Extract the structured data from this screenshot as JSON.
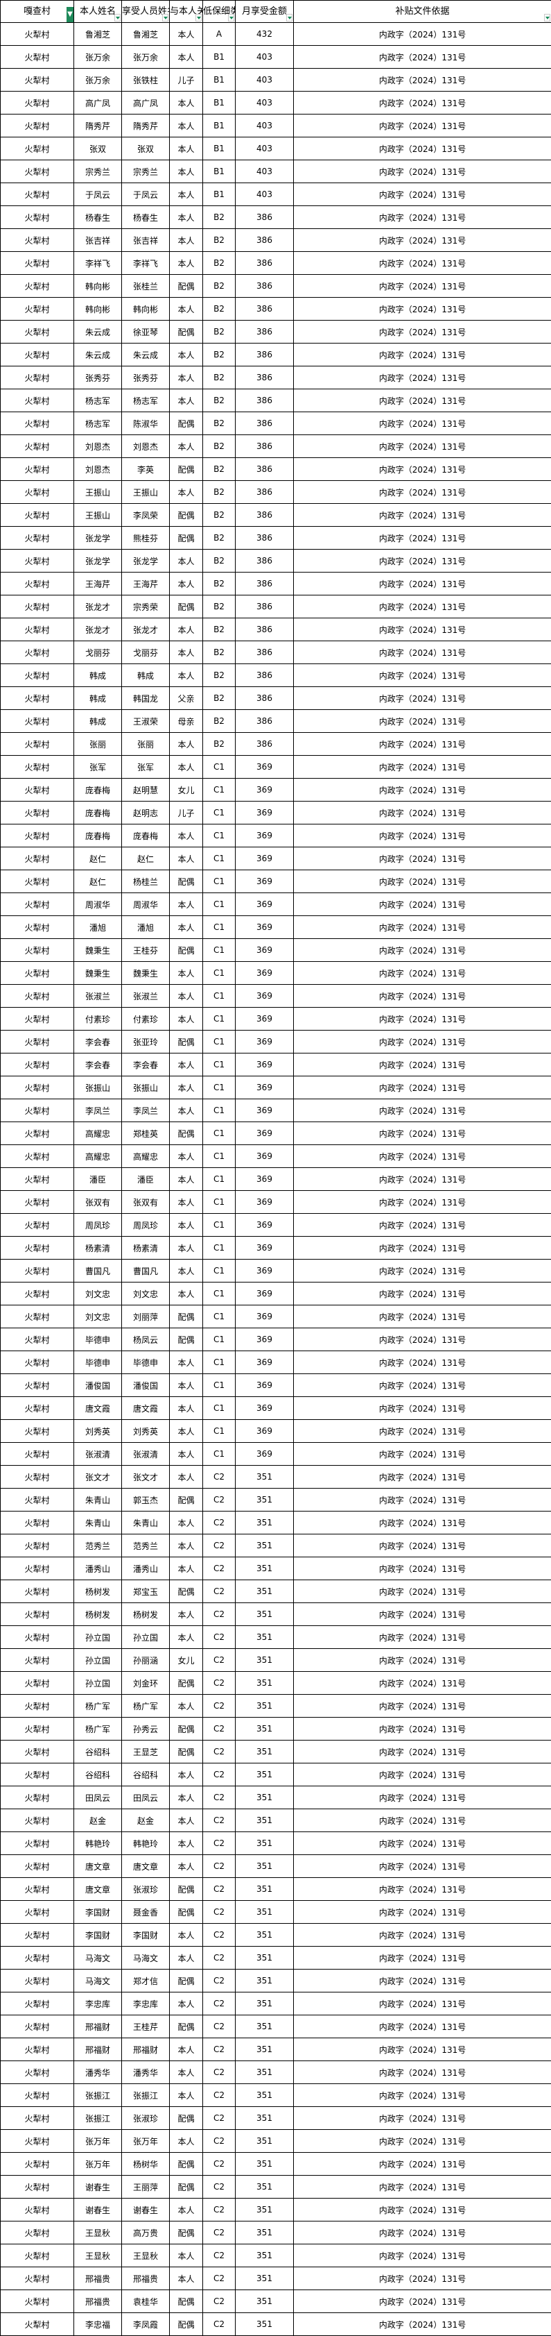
{
  "headers": [
    "嘎查村",
    "本人姓名",
    "享受人员姓名",
    "与本人关系",
    "低保细类",
    "月享受金额",
    "补贴文件依据"
  ],
  "filter_icons": {
    "active": "filter-active-icon",
    "dropdown": "filter-dropdown-icon"
  },
  "accent_color": "#1e8a5a",
  "rows": [
    [
      "火犁村",
      "鲁湘芝",
      "鲁湘芝",
      "本人",
      "A",
      "432",
      "内政字（2024）131号"
    ],
    [
      "火犁村",
      "张万余",
      "张万余",
      "本人",
      "B1",
      "403",
      "内政字（2024）131号"
    ],
    [
      "火犁村",
      "张万余",
      "张铁柱",
      "儿子",
      "B1",
      "403",
      "内政字（2024）131号"
    ],
    [
      "火犁村",
      "高广凤",
      "高广凤",
      "本人",
      "B1",
      "403",
      "内政字（2024）131号"
    ],
    [
      "火犁村",
      "隋秀芹",
      "隋秀芹",
      "本人",
      "B1",
      "403",
      "内政字（2024）131号"
    ],
    [
      "火犁村",
      "张双",
      "张双",
      "本人",
      "B1",
      "403",
      "内政字（2024）131号"
    ],
    [
      "火犁村",
      "宗秀兰",
      "宗秀兰",
      "本人",
      "B1",
      "403",
      "内政字（2024）131号"
    ],
    [
      "火犁村",
      "于凤云",
      "于凤云",
      "本人",
      "B1",
      "403",
      "内政字（2024）131号"
    ],
    [
      "火犁村",
      "杨春生",
      "杨春生",
      "本人",
      "B2",
      "386",
      "内政字（2024）131号"
    ],
    [
      "火犁村",
      "张吉祥",
      "张吉祥",
      "本人",
      "B2",
      "386",
      "内政字（2024）131号"
    ],
    [
      "火犁村",
      "李祥飞",
      "李祥飞",
      "本人",
      "B2",
      "386",
      "内政字（2024）131号"
    ],
    [
      "火犁村",
      "韩向彬",
      "张桂兰",
      "配偶",
      "B2",
      "386",
      "内政字（2024）131号"
    ],
    [
      "火犁村",
      "韩向彬",
      "韩向彬",
      "本人",
      "B2",
      "386",
      "内政字（2024）131号"
    ],
    [
      "火犁村",
      "朱云成",
      "徐亚琴",
      "配偶",
      "B2",
      "386",
      "内政字（2024）131号"
    ],
    [
      "火犁村",
      "朱云成",
      "朱云成",
      "本人",
      "B2",
      "386",
      "内政字（2024）131号"
    ],
    [
      "火犁村",
      "张秀芬",
      "张秀芬",
      "本人",
      "B2",
      "386",
      "内政字（2024）131号"
    ],
    [
      "火犁村",
      "杨志军",
      "杨志军",
      "本人",
      "B2",
      "386",
      "内政字（2024）131号"
    ],
    [
      "火犁村",
      "杨志军",
      "陈淑华",
      "配偶",
      "B2",
      "386",
      "内政字（2024）131号"
    ],
    [
      "火犁村",
      "刘恩杰",
      "刘恩杰",
      "本人",
      "B2",
      "386",
      "内政字（2024）131号"
    ],
    [
      "火犁村",
      "刘恩杰",
      "李英",
      "配偶",
      "B2",
      "386",
      "内政字（2024）131号"
    ],
    [
      "火犁村",
      "王振山",
      "王振山",
      "本人",
      "B2",
      "386",
      "内政字（2024）131号"
    ],
    [
      "火犁村",
      "王振山",
      "李凤荣",
      "配偶",
      "B2",
      "386",
      "内政字（2024）131号"
    ],
    [
      "火犁村",
      "张龙学",
      "熊桂芬",
      "配偶",
      "B2",
      "386",
      "内政字（2024）131号"
    ],
    [
      "火犁村",
      "张龙学",
      "张龙学",
      "本人",
      "B2",
      "386",
      "内政字（2024）131号"
    ],
    [
      "火犁村",
      "王海芹",
      "王海芹",
      "本人",
      "B2",
      "386",
      "内政字（2024）131号"
    ],
    [
      "火犁村",
      "张龙才",
      "宗秀荣",
      "配偶",
      "B2",
      "386",
      "内政字（2024）131号"
    ],
    [
      "火犁村",
      "张龙才",
      "张龙才",
      "本人",
      "B2",
      "386",
      "内政字（2024）131号"
    ],
    [
      "火犁村",
      "戈丽芬",
      "戈丽芬",
      "本人",
      "B2",
      "386",
      "内政字（2024）131号"
    ],
    [
      "火犁村",
      "韩成",
      "韩成",
      "本人",
      "B2",
      "386",
      "内政字（2024）131号"
    ],
    [
      "火犁村",
      "韩成",
      "韩国龙",
      "父亲",
      "B2",
      "386",
      "内政字（2024）131号"
    ],
    [
      "火犁村",
      "韩成",
      "王淑荣",
      "母亲",
      "B2",
      "386",
      "内政字（2024）131号"
    ],
    [
      "火犁村",
      "张丽",
      "张丽",
      "本人",
      "B2",
      "386",
      "内政字（2024）131号"
    ],
    [
      "火犁村",
      "张军",
      "张军",
      "本人",
      "C1",
      "369",
      "内政字（2024）131号"
    ],
    [
      "火犁村",
      "庞春梅",
      "赵明慧",
      "女儿",
      "C1",
      "369",
      "内政字（2024）131号"
    ],
    [
      "火犁村",
      "庞春梅",
      "赵明志",
      "儿子",
      "C1",
      "369",
      "内政字（2024）131号"
    ],
    [
      "火犁村",
      "庞春梅",
      "庞春梅",
      "本人",
      "C1",
      "369",
      "内政字（2024）131号"
    ],
    [
      "火犁村",
      "赵仁",
      "赵仁",
      "本人",
      "C1",
      "369",
      "内政字（2024）131号"
    ],
    [
      "火犁村",
      "赵仁",
      "杨桂兰",
      "配偶",
      "C1",
      "369",
      "内政字（2024）131号"
    ],
    [
      "火犁村",
      "周淑华",
      "周淑华",
      "本人",
      "C1",
      "369",
      "内政字（2024）131号"
    ],
    [
      "火犁村",
      "潘旭",
      "潘旭",
      "本人",
      "C1",
      "369",
      "内政字（2024）131号"
    ],
    [
      "火犁村",
      "魏秉生",
      "王桂芬",
      "配偶",
      "C1",
      "369",
      "内政字（2024）131号"
    ],
    [
      "火犁村",
      "魏秉生",
      "魏秉生",
      "本人",
      "C1",
      "369",
      "内政字（2024）131号"
    ],
    [
      "火犁村",
      "张淑兰",
      "张淑兰",
      "本人",
      "C1",
      "369",
      "内政字（2024）131号"
    ],
    [
      "火犁村",
      "付素珍",
      "付素珍",
      "本人",
      "C1",
      "369",
      "内政字（2024）131号"
    ],
    [
      "火犁村",
      "李会春",
      "张亚玲",
      "配偶",
      "C1",
      "369",
      "内政字（2024）131号"
    ],
    [
      "火犁村",
      "李会春",
      "李会春",
      "本人",
      "C1",
      "369",
      "内政字（2024）131号"
    ],
    [
      "火犁村",
      "张振山",
      "张振山",
      "本人",
      "C1",
      "369",
      "内政字（2024）131号"
    ],
    [
      "火犁村",
      "李凤兰",
      "李凤兰",
      "本人",
      "C1",
      "369",
      "内政字（2024）131号"
    ],
    [
      "火犁村",
      "高耀忠",
      "郑桂英",
      "配偶",
      "C1",
      "369",
      "内政字（2024）131号"
    ],
    [
      "火犁村",
      "高耀忠",
      "高耀忠",
      "本人",
      "C1",
      "369",
      "内政字（2024）131号"
    ],
    [
      "火犁村",
      "潘臣",
      "潘臣",
      "本人",
      "C1",
      "369",
      "内政字（2024）131号"
    ],
    [
      "火犁村",
      "张双有",
      "张双有",
      "本人",
      "C1",
      "369",
      "内政字（2024）131号"
    ],
    [
      "火犁村",
      "周凤珍",
      "周凤珍",
      "本人",
      "C1",
      "369",
      "内政字（2024）131号"
    ],
    [
      "火犁村",
      "杨素清",
      "杨素清",
      "本人",
      "C1",
      "369",
      "内政字（2024）131号"
    ],
    [
      "火犁村",
      "曹国凡",
      "曹国凡",
      "本人",
      "C1",
      "369",
      "内政字（2024）131号"
    ],
    [
      "火犁村",
      "刘文忠",
      "刘文忠",
      "本人",
      "C1",
      "369",
      "内政字（2024）131号"
    ],
    [
      "火犁村",
      "刘文忠",
      "刘丽萍",
      "配偶",
      "C1",
      "369",
      "内政字（2024）131号"
    ],
    [
      "火犁村",
      "毕德申",
      "杨凤云",
      "配偶",
      "C1",
      "369",
      "内政字（2024）131号"
    ],
    [
      "火犁村",
      "毕德申",
      "毕德申",
      "本人",
      "C1",
      "369",
      "内政字（2024）131号"
    ],
    [
      "火犁村",
      "潘俊国",
      "潘俊国",
      "本人",
      "C1",
      "369",
      "内政字（2024）131号"
    ],
    [
      "火犁村",
      "唐文霞",
      "唐文霞",
      "本人",
      "C1",
      "369",
      "内政字（2024）131号"
    ],
    [
      "火犁村",
      "刘秀英",
      "刘秀英",
      "本人",
      "C1",
      "369",
      "内政字（2024）131号"
    ],
    [
      "火犁村",
      "张淑清",
      "张淑清",
      "本人",
      "C1",
      "369",
      "内政字（2024）131号"
    ],
    [
      "火犁村",
      "张文才",
      "张文才",
      "本人",
      "C2",
      "351",
      "内政字（2024）131号"
    ],
    [
      "火犁村",
      "朱青山",
      "郭玉杰",
      "配偶",
      "C2",
      "351",
      "内政字（2024）131号"
    ],
    [
      "火犁村",
      "朱青山",
      "朱青山",
      "本人",
      "C2",
      "351",
      "内政字（2024）131号"
    ],
    [
      "火犁村",
      "范秀兰",
      "范秀兰",
      "本人",
      "C2",
      "351",
      "内政字（2024）131号"
    ],
    [
      "火犁村",
      "潘秀山",
      "潘秀山",
      "本人",
      "C2",
      "351",
      "内政字（2024）131号"
    ],
    [
      "火犁村",
      "杨树发",
      "郑宝玉",
      "配偶",
      "C2",
      "351",
      "内政字（2024）131号"
    ],
    [
      "火犁村",
      "杨树发",
      "杨树发",
      "本人",
      "C2",
      "351",
      "内政字（2024）131号"
    ],
    [
      "火犁村",
      "孙立国",
      "孙立国",
      "本人",
      "C2",
      "351",
      "内政字（2024）131号"
    ],
    [
      "火犁村",
      "孙立国",
      "孙丽涵",
      "女儿",
      "C2",
      "351",
      "内政字（2024）131号"
    ],
    [
      "火犁村",
      "孙立国",
      "刘金环",
      "配偶",
      "C2",
      "351",
      "内政字（2024）131号"
    ],
    [
      "火犁村",
      "杨广军",
      "杨广军",
      "本人",
      "C2",
      "351",
      "内政字（2024）131号"
    ],
    [
      "火犁村",
      "杨广军",
      "孙秀云",
      "配偶",
      "C2",
      "351",
      "内政字（2024）131号"
    ],
    [
      "火犁村",
      "谷绍科",
      "王显芝",
      "配偶",
      "C2",
      "351",
      "内政字（2024）131号"
    ],
    [
      "火犁村",
      "谷绍科",
      "谷绍科",
      "本人",
      "C2",
      "351",
      "内政字（2024）131号"
    ],
    [
      "火犁村",
      "田凤云",
      "田凤云",
      "本人",
      "C2",
      "351",
      "内政字（2024）131号"
    ],
    [
      "火犁村",
      "赵金",
      "赵金",
      "本人",
      "C2",
      "351",
      "内政字（2024）131号"
    ],
    [
      "火犁村",
      "韩艳玲",
      "韩艳玲",
      "本人",
      "C2",
      "351",
      "内政字（2024）131号"
    ],
    [
      "火犁村",
      "唐文章",
      "唐文章",
      "本人",
      "C2",
      "351",
      "内政字（2024）131号"
    ],
    [
      "火犁村",
      "唐文章",
      "张淑珍",
      "配偶",
      "C2",
      "351",
      "内政字（2024）131号"
    ],
    [
      "火犁村",
      "李国财",
      "聂金香",
      "配偶",
      "C2",
      "351",
      "内政字（2024）131号"
    ],
    [
      "火犁村",
      "李国财",
      "李国财",
      "本人",
      "C2",
      "351",
      "内政字（2024）131号"
    ],
    [
      "火犁村",
      "马海文",
      "马海文",
      "本人",
      "C2",
      "351",
      "内政字（2024）131号"
    ],
    [
      "火犁村",
      "马海文",
      "郑才信",
      "配偶",
      "C2",
      "351",
      "内政字（2024）131号"
    ],
    [
      "火犁村",
      "李忠库",
      "李忠库",
      "本人",
      "C2",
      "351",
      "内政字（2024）131号"
    ],
    [
      "火犁村",
      "邢福财",
      "王桂芹",
      "配偶",
      "C2",
      "351",
      "内政字（2024）131号"
    ],
    [
      "火犁村",
      "邢福财",
      "邢福财",
      "本人",
      "C2",
      "351",
      "内政字（2024）131号"
    ],
    [
      "火犁村",
      "潘秀华",
      "潘秀华",
      "本人",
      "C2",
      "351",
      "内政字（2024）131号"
    ],
    [
      "火犁村",
      "张振江",
      "张振江",
      "本人",
      "C2",
      "351",
      "内政字（2024）131号"
    ],
    [
      "火犁村",
      "张振江",
      "张淑珍",
      "配偶",
      "C2",
      "351",
      "内政字（2024）131号"
    ],
    [
      "火犁村",
      "张万年",
      "张万年",
      "本人",
      "C2",
      "351",
      "内政字（2024）131号"
    ],
    [
      "火犁村",
      "张万年",
      "杨树华",
      "配偶",
      "C2",
      "351",
      "内政字（2024）131号"
    ],
    [
      "火犁村",
      "谢春生",
      "王丽萍",
      "配偶",
      "C2",
      "351",
      "内政字（2024）131号"
    ],
    [
      "火犁村",
      "谢春生",
      "谢春生",
      "本人",
      "C2",
      "351",
      "内政字（2024）131号"
    ],
    [
      "火犁村",
      "王显秋",
      "高万贵",
      "配偶",
      "C2",
      "351",
      "内政字（2024）131号"
    ],
    [
      "火犁村",
      "王显秋",
      "王显秋",
      "本人",
      "C2",
      "351",
      "内政字（2024）131号"
    ],
    [
      "火犁村",
      "邢福贵",
      "邢福贵",
      "本人",
      "C2",
      "351",
      "内政字（2024）131号"
    ],
    [
      "火犁村",
      "邢福贵",
      "袁桂华",
      "配偶",
      "C2",
      "351",
      "内政字（2024）131号"
    ],
    [
      "火犁村",
      "李忠福",
      "李凤霞",
      "配偶",
      "C2",
      "351",
      "内政字（2024）131号"
    ]
  ]
}
